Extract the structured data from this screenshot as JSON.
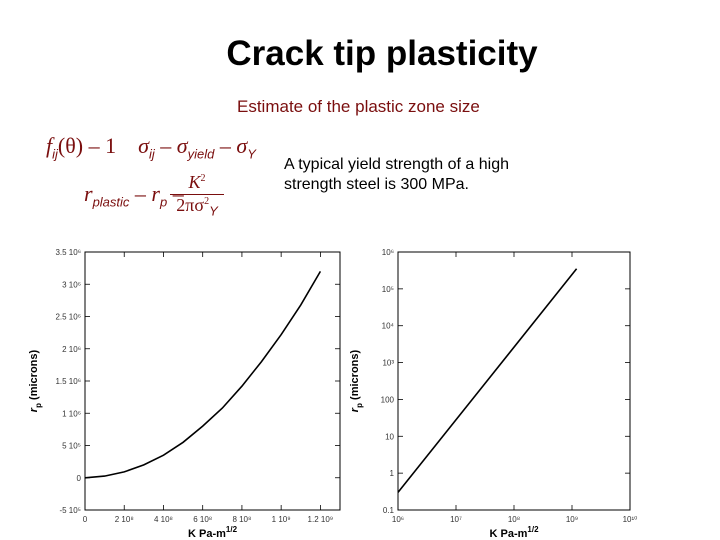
{
  "slide": {
    "title": "Crack tip plasticity",
    "subtitle": "Estimate of the plastic zone size",
    "note": "A typical yield strength of a high strength steel is 300 MPa."
  },
  "equations": {
    "eq1": {
      "f": "f",
      "f_sub": "ij",
      "theta": "(θ) – 1",
      "sigma1": "σ",
      "sigma1_sub": "ij",
      "eq": "–",
      "sigma2": "σ",
      "sigma2_sub": "yield",
      "eq2": "–",
      "sigma3": "σ",
      "sigma3_sub": "Y"
    },
    "eq2": {
      "r1": "r",
      "r1_sub": "plastic",
      "eq": "–",
      "r2": "r",
      "r2_sub": "p",
      "eq2": "–",
      "num": "K",
      "num_sup": "2",
      "den": "2πσ",
      "den_sup": "2",
      "den_sub": "Y"
    }
  },
  "colors": {
    "accent": "#7a0e0e",
    "axis": "#000000",
    "line": "#000000"
  },
  "chart_data": [
    {
      "type": "line",
      "xscale": "linear",
      "yscale": "linear",
      "xlim": [
        0,
        1300000000.0
      ],
      "ylim": [
        -500000.0,
        3500000.0
      ],
      "xticks": [
        0,
        200000000.0,
        400000000.0,
        600000000.0,
        800000000.0,
        1000000000.0,
        1200000000.0
      ],
      "xtick_labels": [
        "0",
        "2 10⁸",
        "4 10⁸",
        "6 10⁸",
        "8 10⁸",
        "1 10⁹",
        "1.2 10⁹"
      ],
      "yticks": [
        -500000.0,
        0,
        500000.0,
        1000000.0,
        1500000.0,
        2000000.0,
        2500000.0,
        3000000.0,
        3500000.0
      ],
      "ytick_labels": [
        "-5 10⁵",
        "0",
        "5 10⁵",
        "1 10⁶",
        "1.5 10⁶",
        "2 10⁶",
        "2.5 10⁶",
        "3 10⁶",
        "3.5 10⁶"
      ],
      "xlabel": "K Pa-m",
      "xlabel_sup": "1/2",
      "ylabel": "r",
      "ylabel_sub": "p",
      "ylabel_rest": " (microns)",
      "series": [
        {
          "x": [
            1000000.0,
            100000000.0,
            200000000.0,
            300000000.0,
            400000000.0,
            500000000.0,
            600000000.0,
            700000000.0,
            800000000.0,
            900000000.0,
            1000000000.0,
            1100000000.0,
            1200000000.0
          ],
          "y": [
            0,
            26000.0,
            90000.0,
            200000.0,
            350000.0,
            550000.0,
            800000.0,
            1080000.0,
            1420000.0,
            1800000.0,
            2220000.0,
            2680000.0,
            3200000.0
          ]
        }
      ],
      "grid": false
    },
    {
      "type": "line",
      "xscale": "log",
      "yscale": "log",
      "xlim": [
        1000000.0,
        10000000000.0
      ],
      "ylim": [
        0.1,
        1000000.0
      ],
      "xticks": [
        1000000.0,
        10000000.0,
        100000000.0,
        1000000000.0,
        10000000000.0
      ],
      "xtick_labels": [
        "10⁶",
        "10⁷",
        "10⁸",
        "10⁹",
        "10¹⁰"
      ],
      "yticks": [
        0.1,
        1,
        10,
        100,
        1000,
        10000.0,
        100000.0,
        1000000.0
      ],
      "ytick_labels": [
        "0.1",
        "1",
        "10",
        "100",
        "10³",
        "10⁴",
        "10⁵",
        "10⁶"
      ],
      "xlabel": "K Pa-m",
      "xlabel_sup": "1/2",
      "ylabel": "r",
      "ylabel_sub": "p",
      "ylabel_rest": " (microns)",
      "series": [
        {
          "x": [
            1000000.0,
            1200000000.0
          ],
          "y": [
            0.3,
            350000.0
          ]
        }
      ],
      "grid": false
    }
  ]
}
